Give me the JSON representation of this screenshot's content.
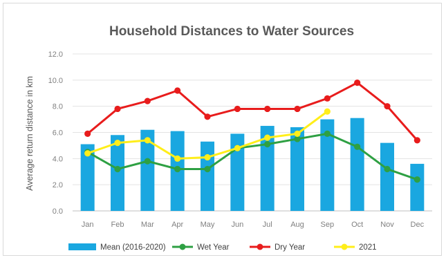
{
  "chart_data": {
    "type": "bar",
    "title": "Household Distances to Water Sources",
    "xlabel": "",
    "ylabel": "Average return distance in km",
    "ylim": [
      0,
      12
    ],
    "yticks": [
      "0.0",
      "2.0",
      "4.0",
      "6.0",
      "8.0",
      "10.0",
      "12.0"
    ],
    "grid": true,
    "legend_position": "bottom",
    "categories": [
      "Jan",
      "Feb",
      "Mar",
      "Apr",
      "May",
      "Jun",
      "Jul",
      "Aug",
      "Sep",
      "Oct",
      "Nov",
      "Dec"
    ],
    "series": [
      {
        "name": "Mean (2016-2020)",
        "kind": "bar",
        "color": "#1aa7e0",
        "values": [
          5.1,
          5.8,
          6.2,
          6.1,
          5.3,
          5.9,
          6.5,
          6.4,
          7.0,
          7.1,
          5.2,
          3.6
        ]
      },
      {
        "name": "Wet Year",
        "kind": "line",
        "color": "#2ea043",
        "values": [
          4.5,
          3.2,
          3.8,
          3.2,
          3.2,
          4.8,
          5.1,
          5.5,
          5.9,
          4.9,
          3.2,
          2.4
        ]
      },
      {
        "name": "Dry Year",
        "kind": "line",
        "color": "#e81c1c",
        "values": [
          5.9,
          7.8,
          8.4,
          9.2,
          7.2,
          7.8,
          7.8,
          7.8,
          8.6,
          9.8,
          8.0,
          5.4
        ]
      },
      {
        "name": "2021",
        "kind": "line",
        "color": "#ffee1a",
        "values": [
          4.4,
          5.2,
          5.4,
          4.0,
          4.1,
          4.8,
          5.6,
          5.9,
          7.6,
          null,
          null,
          null
        ]
      }
    ]
  }
}
